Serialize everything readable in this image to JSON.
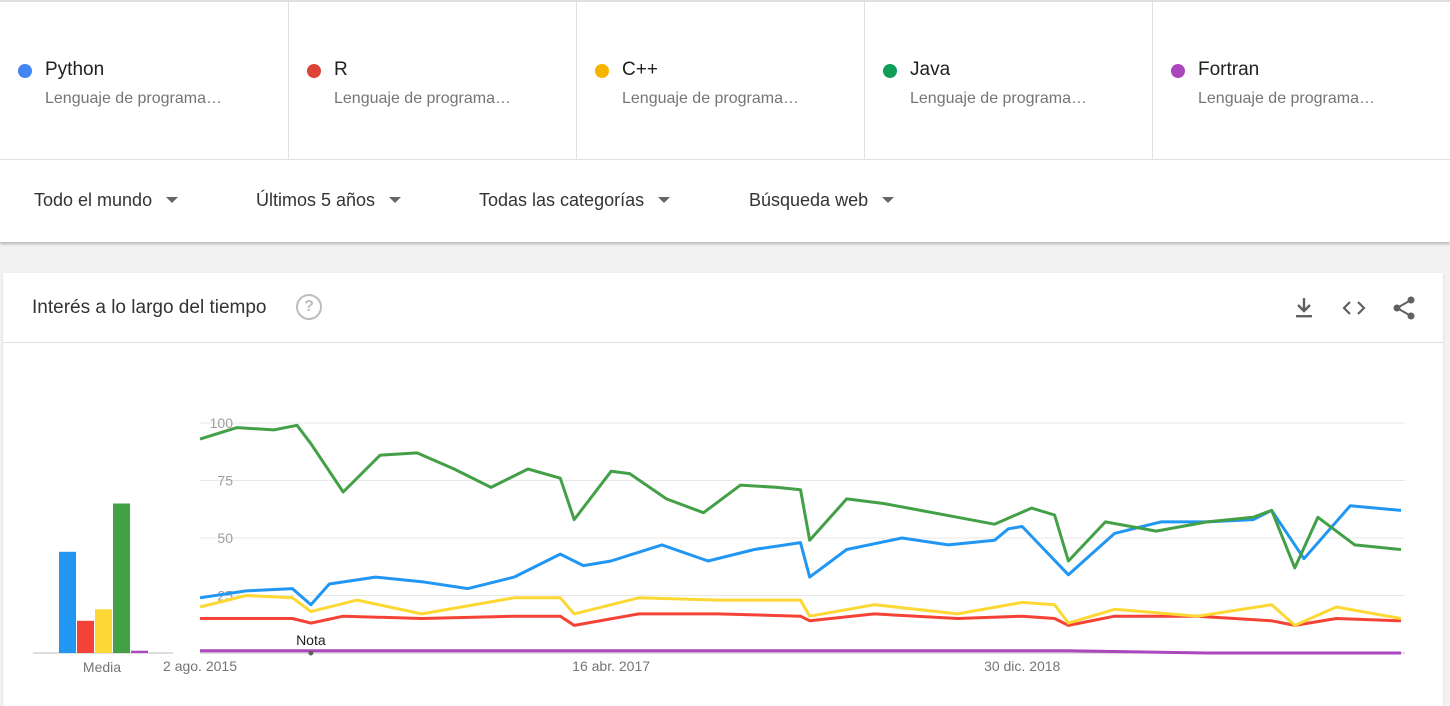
{
  "terms": [
    {
      "name": "Python",
      "desc": "Lenguaje de programa…",
      "color": "#4285f4"
    },
    {
      "name": "R",
      "desc": "Lenguaje de programa…",
      "color": "#db4437"
    },
    {
      "name": "C++",
      "desc": "Lenguaje de programa…",
      "color": "#f4b400"
    },
    {
      "name": "Java",
      "desc": "Lenguaje de programa…",
      "color": "#0f9d58"
    },
    {
      "name": "Fortran",
      "desc": "Lenguaje de programa…",
      "color": "#ab47bc"
    }
  ],
  "filters": {
    "region": "Todo el mundo",
    "time": "Últimos 5 años",
    "category": "Todas las categorías",
    "search_type": "Búsqueda web"
  },
  "card": {
    "title": "Interés a lo largo del tiempo",
    "help_glyph": "?",
    "icons": [
      "download-icon",
      "embed-icon",
      "share-icon"
    ]
  },
  "chart_data": [
    {
      "type": "bar",
      "xlabel": "Media",
      "categories": [
        "Python",
        "R",
        "C++",
        "Java",
        "Fortran"
      ],
      "values": [
        44,
        14,
        19,
        65,
        1
      ],
      "colors": [
        "#2196f3",
        "#f44336",
        "#fdd835",
        "#43a047",
        "#ab47bc"
      ],
      "ylim": [
        0,
        100
      ]
    },
    {
      "type": "line",
      "x_ticks": [
        "2 ago. 2015",
        "16 abr. 2017",
        "30 dic. 2018"
      ],
      "x_range": [
        "2015-08-02",
        "2020-07-26"
      ],
      "y_ticks": [
        100,
        75,
        50,
        25
      ],
      "ylim": [
        0,
        100
      ],
      "grid": true,
      "annotations": [
        {
          "text": "Nota",
          "x": "2016-01-17"
        }
      ],
      "series": [
        {
          "name": "Python",
          "color": "#2196f3",
          "x": [
            "2015-08-02",
            "2015-10-11",
            "2015-12-20",
            "2016-01-17",
            "2016-02-14",
            "2016-04-24",
            "2016-07-03",
            "2016-09-11",
            "2016-11-20",
            "2017-01-29",
            "2017-03-05",
            "2017-04-16",
            "2017-07-02",
            "2017-09-10",
            "2017-11-19",
            "2018-01-28",
            "2018-02-11",
            "2018-04-08",
            "2018-07-01",
            "2018-09-09",
            "2018-11-18",
            "2018-12-09",
            "2018-12-30",
            "2019-03-10",
            "2019-05-19",
            "2019-07-28",
            "2019-10-06",
            "2019-12-15",
            "2020-01-12",
            "2020-03-01",
            "2020-05-10",
            "2020-07-26"
          ],
          "values": [
            24,
            27,
            28,
            21,
            30,
            33,
            31,
            28,
            33,
            43,
            38,
            40,
            47,
            40,
            45,
            48,
            33,
            45,
            50,
            47,
            49,
            54,
            55,
            34,
            52,
            57,
            57,
            58,
            62,
            41,
            64,
            62
          ]
        },
        {
          "name": "R",
          "color": "#f44336",
          "x": [
            "2015-08-02",
            "2015-12-20",
            "2016-01-17",
            "2016-03-06",
            "2016-07-03",
            "2016-11-20",
            "2017-01-29",
            "2017-02-19",
            "2017-05-28",
            "2017-09-24",
            "2018-01-28",
            "2018-02-11",
            "2018-05-20",
            "2018-09-23",
            "2018-12-30",
            "2019-02-17",
            "2019-03-10",
            "2019-05-19",
            "2019-09-22",
            "2020-01-12",
            "2020-02-16",
            "2020-04-19",
            "2020-07-26"
          ],
          "values": [
            15,
            15,
            13,
            16,
            15,
            16,
            16,
            12,
            17,
            17,
            16,
            14,
            17,
            15,
            16,
            15,
            12,
            16,
            16,
            14,
            12,
            15,
            14
          ]
        },
        {
          "name": "C++",
          "color": "#fdd835",
          "x": [
            "2015-08-02",
            "2015-10-11",
            "2015-12-20",
            "2016-01-17",
            "2016-03-27",
            "2016-07-03",
            "2016-11-20",
            "2017-01-29",
            "2017-02-19",
            "2017-05-28",
            "2017-09-24",
            "2018-01-28",
            "2018-02-11",
            "2018-05-20",
            "2018-09-23",
            "2018-12-30",
            "2019-02-17",
            "2019-03-10",
            "2019-05-19",
            "2019-09-22",
            "2020-01-12",
            "2020-02-16",
            "2020-04-19",
            "2020-07-26"
          ],
          "values": [
            20,
            25,
            24,
            18,
            23,
            17,
            24,
            24,
            17,
            24,
            23,
            23,
            16,
            21,
            17,
            22,
            21,
            13,
            19,
            16,
            21,
            12,
            20,
            15
          ]
        },
        {
          "name": "Java",
          "color": "#43a047",
          "x": [
            "2015-08-02",
            "2015-09-27",
            "2015-11-22",
            "2015-12-27",
            "2016-01-17",
            "2016-03-06",
            "2016-05-01",
            "2016-06-26",
            "2016-08-21",
            "2016-10-16",
            "2016-12-11",
            "2017-01-29",
            "2017-02-19",
            "2017-04-16",
            "2017-05-14",
            "2017-07-09",
            "2017-09-03",
            "2017-10-29",
            "2017-12-24",
            "2018-01-28",
            "2018-02-11",
            "2018-04-08",
            "2018-06-03",
            "2018-07-29",
            "2018-09-23",
            "2018-11-18",
            "2019-01-13",
            "2019-02-17",
            "2019-03-10",
            "2019-05-05",
            "2019-07-21",
            "2019-10-06",
            "2019-12-15",
            "2020-01-12",
            "2020-02-16",
            "2020-03-22",
            "2020-05-17",
            "2020-07-26"
          ],
          "values": [
            93,
            98,
            97,
            99,
            91,
            70,
            86,
            87,
            80,
            72,
            80,
            76,
            58,
            79,
            78,
            67,
            61,
            73,
            72,
            71,
            49,
            67,
            65,
            62,
            59,
            56,
            63,
            60,
            40,
            57,
            53,
            57,
            59,
            62,
            37,
            59,
            47,
            45
          ]
        },
        {
          "name": "Fortran",
          "color": "#ab47bc",
          "x": [
            "2015-08-02",
            "2016-06-26",
            "2017-05-28",
            "2018-01-28",
            "2018-06-03",
            "2019-03-10",
            "2019-10-06",
            "2020-07-26"
          ],
          "values": [
            1,
            1,
            1,
            1,
            1,
            1,
            0,
            0
          ]
        }
      ]
    }
  ]
}
